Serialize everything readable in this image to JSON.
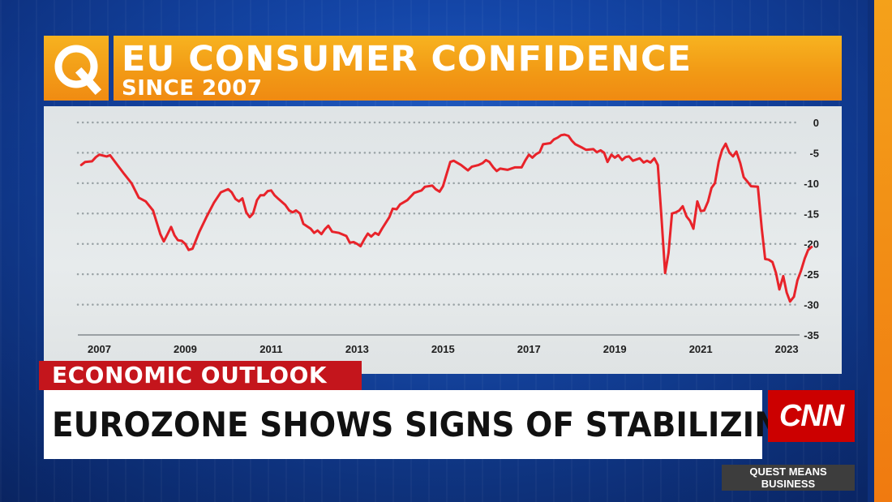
{
  "banner": {
    "title": "EU CONSUMER CONFIDENCE",
    "subtitle": "SINCE 2007",
    "logo_letter": "Q"
  },
  "lower_third": {
    "tag": "ECONOMIC OUTLOOK",
    "headline": "EUROZONE SHOWS SIGNS OF STABILIZING",
    "network_logo": "CNN",
    "show_line1": "QUEST MEANS",
    "show_line2": "BUSINESS"
  },
  "colors": {
    "banner_orange": "#f29a15",
    "tag_red": "#c4151c",
    "line_red": "#e8232a",
    "background_blue": "#1446a8"
  },
  "chart_data": {
    "type": "line",
    "title": "EU CONSUMER CONFIDENCE",
    "subtitle": "SINCE 2007",
    "xlabel": "",
    "ylabel": "",
    "xlim": [
      2006.5,
      2023.3
    ],
    "ylim": [
      -35,
      0
    ],
    "y_ticks": [
      0,
      -5,
      -10,
      -15,
      -20,
      -25,
      -30,
      -35
    ],
    "x_ticks": [
      2007,
      2009,
      2011,
      2013,
      2015,
      2017,
      2019,
      2021,
      2023
    ],
    "grid": "horizontal-dotted",
    "legend": "none",
    "series": [
      {
        "name": "",
        "color": "#e8232a",
        "points": [
          [
            2006.58,
            -7.0
          ],
          [
            2006.67,
            -6.5
          ],
          [
            2006.83,
            -6.4
          ],
          [
            2006.92,
            -5.7
          ],
          [
            2007.0,
            -5.3
          ],
          [
            2007.17,
            -5.6
          ],
          [
            2007.25,
            -5.4
          ],
          [
            2007.42,
            -7.0
          ],
          [
            2007.58,
            -8.5
          ],
          [
            2007.75,
            -10.0
          ],
          [
            2007.92,
            -12.4
          ],
          [
            2008.08,
            -13.0
          ],
          [
            2008.25,
            -14.5
          ],
          [
            2008.42,
            -18.4
          ],
          [
            2008.5,
            -19.6
          ],
          [
            2008.58,
            -18.5
          ],
          [
            2008.67,
            -17.2
          ],
          [
            2008.75,
            -18.6
          ],
          [
            2008.83,
            -19.4
          ],
          [
            2008.92,
            -19.5
          ],
          [
            2009.0,
            -20.0
          ],
          [
            2009.08,
            -21.0
          ],
          [
            2009.17,
            -20.8
          ],
          [
            2009.33,
            -18.0
          ],
          [
            2009.5,
            -15.5
          ],
          [
            2009.67,
            -13.2
          ],
          [
            2009.83,
            -11.5
          ],
          [
            2010.0,
            -11.0
          ],
          [
            2010.08,
            -11.5
          ],
          [
            2010.17,
            -12.6
          ],
          [
            2010.25,
            -13.0
          ],
          [
            2010.33,
            -12.5
          ],
          [
            2010.42,
            -14.8
          ],
          [
            2010.5,
            -15.6
          ],
          [
            2010.58,
            -15.0
          ],
          [
            2010.67,
            -12.8
          ],
          [
            2010.75,
            -12.0
          ],
          [
            2010.83,
            -12.0
          ],
          [
            2010.92,
            -11.3
          ],
          [
            2011.0,
            -11.2
          ],
          [
            2011.08,
            -12.0
          ],
          [
            2011.17,
            -12.6
          ],
          [
            2011.33,
            -13.6
          ],
          [
            2011.42,
            -14.5
          ],
          [
            2011.5,
            -14.8
          ],
          [
            2011.58,
            -14.5
          ],
          [
            2011.67,
            -15.0
          ],
          [
            2011.75,
            -16.7
          ],
          [
            2011.92,
            -17.5
          ],
          [
            2012.0,
            -18.2
          ],
          [
            2012.08,
            -17.8
          ],
          [
            2012.17,
            -18.4
          ],
          [
            2012.25,
            -17.6
          ],
          [
            2012.33,
            -17.0
          ],
          [
            2012.42,
            -18.0
          ],
          [
            2012.58,
            -18.2
          ],
          [
            2012.75,
            -18.7
          ],
          [
            2012.83,
            -19.8
          ],
          [
            2012.92,
            -19.7
          ],
          [
            2013.0,
            -20.0
          ],
          [
            2013.08,
            -20.4
          ],
          [
            2013.17,
            -19.2
          ],
          [
            2013.25,
            -18.3
          ],
          [
            2013.33,
            -18.8
          ],
          [
            2013.42,
            -18.2
          ],
          [
            2013.5,
            -18.5
          ],
          [
            2013.58,
            -17.5
          ],
          [
            2013.75,
            -15.6
          ],
          [
            2013.83,
            -14.2
          ],
          [
            2013.92,
            -14.3
          ],
          [
            2014.0,
            -13.5
          ],
          [
            2014.17,
            -12.8
          ],
          [
            2014.33,
            -11.6
          ],
          [
            2014.5,
            -11.2
          ],
          [
            2014.58,
            -10.6
          ],
          [
            2014.75,
            -10.4
          ],
          [
            2014.83,
            -11.0
          ],
          [
            2014.92,
            -11.4
          ],
          [
            2015.0,
            -10.5
          ],
          [
            2015.08,
            -8.6
          ],
          [
            2015.17,
            -6.5
          ],
          [
            2015.25,
            -6.3
          ],
          [
            2015.42,
            -7.0
          ],
          [
            2015.58,
            -7.9
          ],
          [
            2015.67,
            -7.3
          ],
          [
            2015.83,
            -7.0
          ],
          [
            2015.92,
            -6.7
          ],
          [
            2016.0,
            -6.2
          ],
          [
            2016.08,
            -6.5
          ],
          [
            2016.17,
            -7.4
          ],
          [
            2016.25,
            -8.0
          ],
          [
            2016.33,
            -7.6
          ],
          [
            2016.5,
            -7.8
          ],
          [
            2016.67,
            -7.4
          ],
          [
            2016.83,
            -7.4
          ],
          [
            2016.92,
            -6.2
          ],
          [
            2017.0,
            -5.3
          ],
          [
            2017.08,
            -5.8
          ],
          [
            2017.17,
            -5.2
          ],
          [
            2017.25,
            -4.9
          ],
          [
            2017.33,
            -3.6
          ],
          [
            2017.5,
            -3.4
          ],
          [
            2017.58,
            -2.8
          ],
          [
            2017.67,
            -2.5
          ],
          [
            2017.75,
            -2.1
          ],
          [
            2017.83,
            -2.0
          ],
          [
            2017.92,
            -2.2
          ],
          [
            2018.0,
            -3.0
          ],
          [
            2018.08,
            -3.6
          ],
          [
            2018.25,
            -4.2
          ],
          [
            2018.33,
            -4.5
          ],
          [
            2018.5,
            -4.4
          ],
          [
            2018.58,
            -4.9
          ],
          [
            2018.67,
            -4.6
          ],
          [
            2018.75,
            -5.0
          ],
          [
            2018.83,
            -6.5
          ],
          [
            2018.92,
            -5.3
          ],
          [
            2019.0,
            -5.8
          ],
          [
            2019.08,
            -5.4
          ],
          [
            2019.17,
            -6.2
          ],
          [
            2019.25,
            -5.7
          ],
          [
            2019.33,
            -5.6
          ],
          [
            2019.42,
            -6.3
          ],
          [
            2019.5,
            -6.1
          ],
          [
            2019.58,
            -5.9
          ],
          [
            2019.67,
            -6.6
          ],
          [
            2019.75,
            -6.3
          ],
          [
            2019.83,
            -6.6
          ],
          [
            2019.92,
            -5.9
          ],
          [
            2020.0,
            -7.0
          ],
          [
            2020.08,
            -15.0
          ],
          [
            2020.17,
            -24.8
          ],
          [
            2020.25,
            -21.5
          ],
          [
            2020.33,
            -15.0
          ],
          [
            2020.42,
            -14.8
          ],
          [
            2020.5,
            -14.5
          ],
          [
            2020.58,
            -13.8
          ],
          [
            2020.67,
            -15.5
          ],
          [
            2020.75,
            -16.2
          ],
          [
            2020.83,
            -17.5
          ],
          [
            2020.92,
            -13.0
          ],
          [
            2021.0,
            -14.6
          ],
          [
            2021.08,
            -14.5
          ],
          [
            2021.17,
            -13.0
          ],
          [
            2021.25,
            -10.8
          ],
          [
            2021.33,
            -10.0
          ],
          [
            2021.42,
            -6.4
          ],
          [
            2021.5,
            -4.5
          ],
          [
            2021.58,
            -3.5
          ],
          [
            2021.67,
            -5.0
          ],
          [
            2021.75,
            -5.6
          ],
          [
            2021.83,
            -4.8
          ],
          [
            2021.92,
            -6.7
          ],
          [
            2022.0,
            -9.0
          ],
          [
            2022.08,
            -9.7
          ],
          [
            2022.17,
            -10.5
          ],
          [
            2022.33,
            -10.6
          ],
          [
            2022.42,
            -17.5
          ],
          [
            2022.5,
            -22.5
          ],
          [
            2022.58,
            -22.6
          ],
          [
            2022.67,
            -23.0
          ],
          [
            2022.75,
            -24.8
          ],
          [
            2022.83,
            -27.5
          ],
          [
            2022.92,
            -25.3
          ],
          [
            2023.0,
            -28.0
          ],
          [
            2023.08,
            -29.5
          ],
          [
            2023.17,
            -28.7
          ],
          [
            2023.25,
            -26.0
          ],
          [
            2023.33,
            -24.5
          ],
          [
            2023.42,
            -22.4
          ],
          [
            2023.5,
            -21.0
          ],
          [
            2023.58,
            -20.5
          ]
        ]
      }
    ]
  }
}
